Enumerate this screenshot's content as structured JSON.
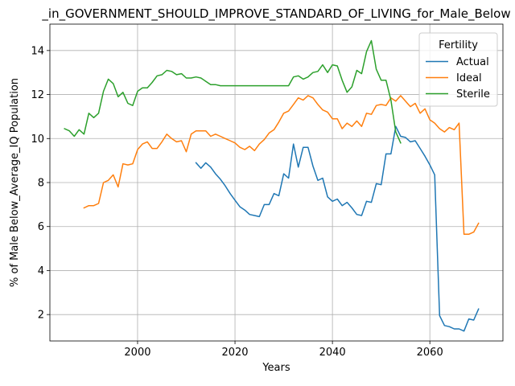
{
  "chart_data": {
    "type": "line",
    "title": "_in_GOVERNMENT_SHOULD_IMPROVE_STANDARD_OF_LIVING_for_Male_Below",
    "xlabel": "Years",
    "ylabel": "% of Male Below_Average_IQ Population",
    "xlim": [
      1982,
      2075
    ],
    "ylim": [
      0.8,
      15.2
    ],
    "xticks": [
      2000,
      2020,
      2040,
      2060
    ],
    "yticks": [
      2,
      4,
      6,
      8,
      10,
      12,
      14
    ],
    "grid": true,
    "legend": {
      "title": "Fertility",
      "placement": "top-right"
    },
    "series": [
      {
        "name": "Actual",
        "color": "#1f77b4",
        "x": [
          2012,
          2013,
          2014,
          2015,
          2016,
          2017,
          2018,
          2019,
          2020,
          2021,
          2022,
          2023,
          2024,
          2025,
          2026,
          2027,
          2028,
          2029,
          2030,
          2031,
          2032,
          2033,
          2034,
          2035,
          2036,
          2037,
          2038,
          2039,
          2040,
          2041,
          2042,
          2043,
          2044,
          2045,
          2046,
          2047,
          2048,
          2049,
          2050,
          2051,
          2052,
          2053,
          2054,
          2055,
          2056,
          2057,
          2058,
          2059,
          2060,
          2061,
          2062,
          2063,
          2064,
          2065,
          2066,
          2067,
          2068,
          2069,
          2070
        ],
        "values": [
          8.9,
          8.65,
          8.9,
          8.7,
          8.4,
          8.15,
          7.85,
          7.5,
          7.2,
          6.9,
          6.75,
          6.55,
          6.5,
          6.45,
          7.0,
          7.0,
          7.5,
          7.4,
          8.4,
          8.2,
          9.75,
          8.7,
          9.6,
          9.6,
          8.75,
          8.1,
          8.2,
          7.35,
          7.15,
          7.25,
          6.95,
          7.1,
          6.85,
          6.55,
          6.5,
          7.15,
          7.1,
          7.95,
          7.9,
          9.3,
          9.3,
          10.55,
          10.1,
          10.05,
          9.85,
          9.9,
          9.55,
          9.2,
          8.8,
          8.35,
          1.95,
          1.5,
          1.45,
          1.35,
          1.35,
          1.25,
          1.8,
          1.75,
          2.25
        ]
      },
      {
        "name": "Ideal",
        "color": "#ff7f0e",
        "x": [
          1989,
          1990,
          1991,
          1992,
          1993,
          1994,
          1995,
          1996,
          1997,
          1998,
          1999,
          2000,
          2001,
          2002,
          2003,
          2004,
          2005,
          2006,
          2007,
          2008,
          2009,
          2010,
          2011,
          2012,
          2013,
          2014,
          2015,
          2016,
          2017,
          2018,
          2019,
          2020,
          2021,
          2022,
          2023,
          2024,
          2025,
          2026,
          2027,
          2028,
          2029,
          2030,
          2031,
          2032,
          2033,
          2034,
          2035,
          2036,
          2037,
          2038,
          2039,
          2040,
          2041,
          2042,
          2043,
          2044,
          2045,
          2046,
          2047,
          2048,
          2049,
          2050,
          2051,
          2052,
          2053,
          2054,
          2055,
          2056,
          2057,
          2058,
          2059,
          2060,
          2061,
          2062,
          2063,
          2064,
          2065,
          2066,
          2067,
          2068,
          2069,
          2070
        ],
        "values": [
          6.85,
          6.95,
          6.95,
          7.05,
          8.0,
          8.1,
          8.35,
          7.8,
          8.85,
          8.8,
          8.85,
          9.5,
          9.75,
          9.85,
          9.55,
          9.55,
          9.85,
          10.2,
          10.0,
          9.85,
          9.9,
          9.4,
          10.2,
          10.35,
          10.35,
          10.35,
          10.1,
          10.2,
          10.1,
          10.0,
          9.9,
          9.8,
          9.6,
          9.5,
          9.65,
          9.45,
          9.75,
          9.95,
          10.25,
          10.4,
          10.75,
          11.15,
          11.25,
          11.55,
          11.85,
          11.75,
          11.95,
          11.85,
          11.55,
          11.3,
          11.2,
          10.9,
          10.9,
          10.45,
          10.7,
          10.55,
          10.8,
          10.55,
          11.15,
          11.1,
          11.5,
          11.55,
          11.5,
          11.85,
          11.7,
          11.95,
          11.7,
          11.45,
          11.6,
          11.15,
          11.35,
          10.85,
          10.7,
          10.45,
          10.3,
          10.5,
          10.4,
          10.7,
          5.65,
          5.65,
          5.75,
          6.15
        ]
      },
      {
        "name": "Sterile",
        "color": "#2ca02c",
        "x": [
          1985,
          1986,
          1987,
          1988,
          1989,
          1990,
          1991,
          1992,
          1993,
          1994,
          1995,
          1996,
          1997,
          1998,
          1999,
          2000,
          2001,
          2002,
          2003,
          2004,
          2005,
          2006,
          2007,
          2008,
          2009,
          2010,
          2011,
          2012,
          2013,
          2014,
          2015,
          2016,
          2017,
          2018,
          2019,
          2020,
          2021,
          2022,
          2023,
          2024,
          2025,
          2026,
          2027,
          2028,
          2029,
          2030,
          2031,
          2032,
          2033,
          2034,
          2035,
          2036,
          2037,
          2038,
          2039,
          2040,
          2041,
          2042,
          2043,
          2044,
          2045,
          2046,
          2047,
          2048,
          2049,
          2050,
          2051,
          2052,
          2053,
          2054
        ],
        "values": [
          10.45,
          10.35,
          10.1,
          10.4,
          10.2,
          11.15,
          10.95,
          11.15,
          12.15,
          12.7,
          12.5,
          11.9,
          12.1,
          11.6,
          11.5,
          12.15,
          12.3,
          12.3,
          12.55,
          12.85,
          12.9,
          13.1,
          13.05,
          12.9,
          12.95,
          12.75,
          12.75,
          12.8,
          12.75,
          12.6,
          12.45,
          12.45,
          12.4,
          12.4,
          12.4,
          12.4,
          12.4,
          12.4,
          12.4,
          12.4,
          12.4,
          12.4,
          12.4,
          12.4,
          12.4,
          12.4,
          12.4,
          12.8,
          12.85,
          12.7,
          12.8,
          13.0,
          13.05,
          13.35,
          13.0,
          13.35,
          13.3,
          12.65,
          12.1,
          12.35,
          13.1,
          12.95,
          13.95,
          14.45,
          13.15,
          12.65,
          12.65,
          11.75,
          10.3,
          9.8
        ]
      }
    ]
  }
}
